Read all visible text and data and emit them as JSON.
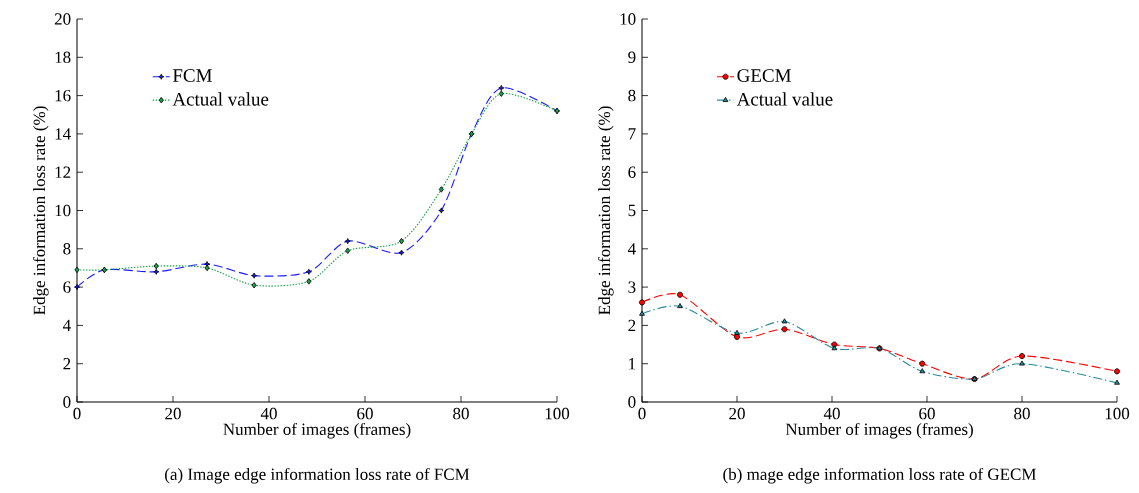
{
  "chart_data": [
    {
      "type": "line",
      "xlabel": "Number of images (frames)",
      "ylabel": "Edge information loss rate (%)",
      "annotations": [
        "(a) Image edge information loss rate of FCM"
      ],
      "x": [
        0,
        5.7,
        16.5,
        27.1,
        36.9,
        48.3,
        56.4,
        67.6,
        75.9,
        82.2,
        88.4,
        100
      ],
      "series": [
        {
          "name": "FCM",
          "color": "#1a1aff",
          "marker": "star",
          "line_style": "dashed",
          "values": [
            6.0,
            6.9,
            6.8,
            7.2,
            6.6,
            6.8,
            8.4,
            7.8,
            10.0,
            14.0,
            16.4,
            15.2
          ]
        },
        {
          "name": "Actual value",
          "color": "#1aa04a",
          "marker": "diamond",
          "line_style": "dotted",
          "values": [
            6.9,
            6.9,
            7.1,
            7.0,
            6.1,
            6.3,
            7.9,
            8.4,
            11.1,
            14.0,
            16.1,
            15.2
          ]
        }
      ],
      "xlim": [
        0,
        100
      ],
      "xticks": [
        0,
        20,
        40,
        60,
        80,
        100
      ],
      "ylim": [
        0,
        20
      ],
      "yticks": [
        0,
        2,
        4,
        6,
        8,
        10,
        12,
        14,
        16,
        18,
        20
      ],
      "legend": "top left"
    },
    {
      "type": "line",
      "xlabel": "Number of images (frames)",
      "ylabel": "Edge information loss rate (%)",
      "annotations": [
        "(b) mage edge information loss rate of GECM"
      ],
      "x": [
        0,
        8,
        20,
        30,
        40.5,
        50,
        59,
        70,
        80,
        100
      ],
      "series": [
        {
          "name": "GECM",
          "color": "#ff0000",
          "marker": "circle",
          "line_style": "dashed",
          "values": [
            2.6,
            2.8,
            1.7,
            1.9,
            1.5,
            1.4,
            1.0,
            0.6,
            1.2,
            0.8
          ]
        },
        {
          "name": "Actual value",
          "color": "#2a8a9a",
          "marker": "triangle",
          "line_style": "dashdot",
          "values": [
            2.3,
            2.5,
            1.8,
            2.1,
            1.4,
            1.4,
            0.8,
            0.6,
            1.0,
            0.5
          ]
        }
      ],
      "xlim": [
        0,
        100
      ],
      "xticks": [
        0,
        20,
        40,
        60,
        80,
        100
      ],
      "ylim": [
        0,
        10
      ],
      "yticks": [
        0,
        1,
        2,
        3,
        4,
        5,
        6,
        7,
        8,
        9,
        10
      ],
      "legend": "top left"
    }
  ]
}
